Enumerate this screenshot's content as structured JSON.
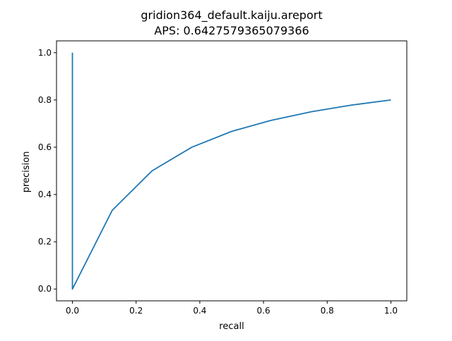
{
  "chart_data": {
    "type": "line",
    "title": "gridion364_default.kaiju.areport",
    "subtitle": "APS: 0.6427579365079366",
    "xlabel": "recall",
    "ylabel": "precision",
    "xlim": [
      -0.05,
      1.05
    ],
    "ylim": [
      -0.05,
      1.05
    ],
    "xticks": [
      0.0,
      0.2,
      0.4,
      0.6,
      0.8,
      1.0
    ],
    "xtick_labels": [
      "0.0",
      "0.2",
      "0.4",
      "0.6",
      "0.8",
      "1.0"
    ],
    "yticks": [
      0.0,
      0.2,
      0.4,
      0.6,
      0.8,
      1.0
    ],
    "ytick_labels": [
      "0.0",
      "0.2",
      "0.4",
      "0.6",
      "0.8",
      "1.0"
    ],
    "grid": false,
    "series": [
      {
        "color": "#1f77b4",
        "x": [
          0.0,
          0.0,
          0.125,
          0.25,
          0.375,
          0.5,
          0.625,
          0.75,
          0.875,
          1.0
        ],
        "y": [
          1.0,
          0.0,
          0.333,
          0.5,
          0.6,
          0.667,
          0.714,
          0.75,
          0.778,
          0.8
        ]
      }
    ]
  }
}
